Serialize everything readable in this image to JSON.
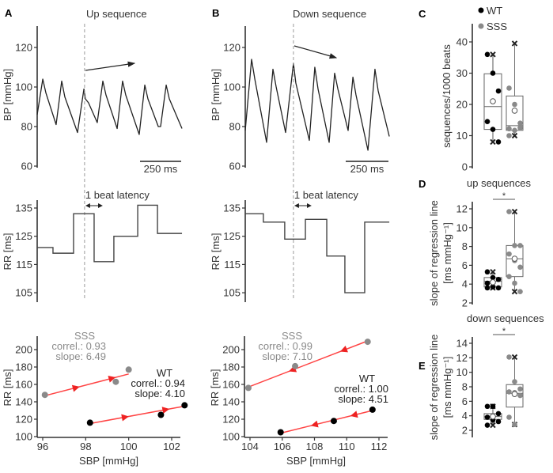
{
  "chart_data": [
    {
      "id": "A_bp",
      "panel": "A",
      "type": "line",
      "title": "Up sequence",
      "ylabel": "BP [mmHg]",
      "ylim": [
        60,
        130
      ],
      "yticks": [
        60,
        80,
        100,
        120
      ],
      "scalebar": "250 ms",
      "x_unit": "ms",
      "marker_time": 288,
      "trace": [
        [
          0,
          86
        ],
        [
          34,
          104
        ],
        [
          53,
          97
        ],
        [
          115,
          81
        ],
        [
          149,
          103
        ],
        [
          168,
          95
        ],
        [
          245,
          77
        ],
        [
          284,
          99
        ],
        [
          293,
          94
        ],
        [
          312,
          92
        ],
        [
          365,
          82
        ],
        [
          399,
          103
        ],
        [
          418,
          96
        ],
        [
          486,
          79
        ],
        [
          519,
          103
        ],
        [
          538,
          96
        ],
        [
          620,
          76
        ],
        [
          654,
          101
        ],
        [
          673,
          94
        ],
        [
          736,
          80
        ],
        [
          750,
          80
        ],
        [
          784,
          101
        ],
        [
          803,
          94
        ],
        [
          880,
          79
        ]
      ]
    },
    {
      "id": "B_bp",
      "panel": "B",
      "type": "line",
      "title": "Down sequence",
      "ylabel": "BP [mmHg]",
      "ylim": [
        60,
        130
      ],
      "yticks": [
        60,
        80,
        100,
        120
      ],
      "scalebar": "250 ms",
      "x_unit": "ms",
      "marker_time": 282,
      "trace": [
        [
          0,
          78
        ],
        [
          37,
          114
        ],
        [
          56,
          104
        ],
        [
          125,
          72
        ],
        [
          162,
          109
        ],
        [
          181,
          100
        ],
        [
          236,
          77
        ],
        [
          282,
          112
        ],
        [
          296,
          102
        ],
        [
          375,
          73
        ],
        [
          407,
          110
        ],
        [
          426,
          99
        ],
        [
          491,
          72
        ],
        [
          523,
          107
        ],
        [
          542,
          99
        ],
        [
          602,
          78
        ],
        [
          630,
          105
        ],
        [
          648,
          96
        ],
        [
          718,
          68
        ],
        [
          759,
          109
        ],
        [
          778,
          98
        ],
        [
          843,
          75
        ]
      ]
    },
    {
      "id": "A_rr",
      "panel": "A",
      "type": "line",
      "ylabel": "RR [ms]",
      "ylim": [
        102,
        138
      ],
      "yticks": [
        105,
        115,
        125,
        135
      ],
      "annotation": "1 beat latency",
      "marker_time": 288,
      "steps": {
        "bounds": [
          0,
          96,
          221,
          346,
          466,
          611,
          731,
          880
        ],
        "values": [
          121,
          119,
          133,
          116,
          125,
          136,
          126
        ]
      }
    },
    {
      "id": "B_rr",
      "panel": "B",
      "type": "line",
      "ylabel": "RR [ms]",
      "ylim": [
        102,
        138
      ],
      "yticks": [
        105,
        115,
        125,
        135
      ],
      "annotation": "1 beat latency",
      "marker_time": 282,
      "steps": {
        "bounds": [
          0,
          106,
          231,
          352,
          477,
          583,
          699,
          843
        ],
        "values": [
          133,
          130,
          124,
          131,
          118,
          105,
          130
        ]
      }
    },
    {
      "id": "A_scatter",
      "panel": "A",
      "type": "scatter",
      "xlabel": "SBP [mmHg]",
      "ylabel": "RR [ms]",
      "xlim": [
        95.8,
        103.1
      ],
      "ylim": [
        100,
        215
      ],
      "xticks": [
        96,
        98,
        100,
        102
      ],
      "yticks": [
        100,
        120,
        140,
        160,
        180,
        200
      ],
      "direction": "up",
      "series": [
        {
          "name": "SSS",
          "color": "#8a8a8a",
          "correl_label": "correl.: 0.93",
          "slope_label": "slope: 6.49",
          "points": [
            [
              96.1,
              148
            ],
            [
              99.4,
              163
            ],
            [
              100,
              177
            ]
          ],
          "fit": [
            [
              96.1,
              147
            ],
            [
              100,
              172
            ]
          ]
        },
        {
          "name": "WT",
          "color": "#000000",
          "correl_label": "correl.: 0.94",
          "slope_label": "slope: 4.10",
          "points": [
            [
              98.2,
              116
            ],
            [
              101.5,
              125
            ],
            [
              102.6,
              136
            ]
          ],
          "fit": [
            [
              98.2,
              115
            ],
            [
              102.6,
              135
            ]
          ]
        }
      ]
    },
    {
      "id": "B_scatter",
      "panel": "B",
      "type": "scatter",
      "xlabel": "SBP [mmHg]",
      "ylabel": "RR [ms]",
      "xlim": [
        103.2,
        112.4
      ],
      "ylim": [
        100,
        215
      ],
      "xticks": [
        104,
        106,
        108,
        110,
        112
      ],
      "yticks": [
        100,
        120,
        140,
        160,
        180,
        200
      ],
      "direction": "down",
      "series": [
        {
          "name": "SSS",
          "color": "#8a8a8a",
          "correl_label": "correl.: 0.99",
          "slope_label": "slope: 7.10",
          "points": [
            [
              103.9,
              156
            ],
            [
              106.8,
              181
            ],
            [
              111.3,
              209
            ]
          ],
          "fit": [
            [
              103.9,
              157
            ],
            [
              111.3,
              210
            ]
          ]
        },
        {
          "name": "WT",
          "color": "#000000",
          "correl_label": "correl.: 1.00",
          "slope_label": "slope: 4.51",
          "points": [
            [
              105.9,
              105
            ],
            [
              109.2,
              118
            ],
            [
              111.6,
              131
            ]
          ],
          "fit": [
            [
              105.9,
              104
            ],
            [
              111.6,
              130
            ]
          ]
        }
      ]
    },
    {
      "id": "C_box",
      "panel": "C",
      "type": "box",
      "ylabel": "sequences/1000 beats",
      "ylim": [
        0,
        45
      ],
      "yticks": [
        0,
        10,
        20,
        30,
        40
      ],
      "legend": [
        "WT",
        "SSS"
      ],
      "groups": [
        {
          "name": "WT",
          "color": "#000000",
          "q1": 12,
          "median": 19.3,
          "q3": 29.8,
          "min": 8,
          "max": 36,
          "mean": 21,
          "points": [
            36,
            30,
            24.3,
            14.5,
            12,
            8
          ]
        },
        {
          "name": "SSS",
          "color": "#8a8a8a",
          "q1": 11.7,
          "median": 13.2,
          "q3": 22.7,
          "min": 10,
          "max": 39.5,
          "mean": 18,
          "points": [
            25.2,
            20,
            14,
            12.2,
            11.7,
            12.5,
            10
          ]
        }
      ]
    },
    {
      "id": "D_box",
      "panel": "D",
      "type": "box",
      "title": "up sequences",
      "ylabel": "slope of regression line",
      "ylabel2": "[ms mmHg⁻¹]",
      "ylim": [
        2,
        13
      ],
      "yticks": [
        2,
        4,
        6,
        8,
        10,
        12
      ],
      "significance": "*",
      "groups": [
        {
          "name": "WT",
          "color": "#000000",
          "q1": 3.7,
          "median": 4.3,
          "q3": 4.7,
          "min": 3.6,
          "max": 5.3,
          "mean": 4.2,
          "points": [
            5.3,
            4.7,
            4.5,
            4.1,
            3.7,
            3.6,
            3.6
          ]
        },
        {
          "name": "SSS",
          "color": "#8a8a8a",
          "q1": 4.8,
          "median": 6.7,
          "q3": 8.1,
          "min": 3.2,
          "max": 11.7,
          "mean": 6.7,
          "points": [
            11.7,
            8.1,
            8.1,
            7.2,
            6.5,
            5.8,
            4.8,
            4.1,
            3.2
          ]
        }
      ]
    },
    {
      "id": "E_box",
      "panel": "E",
      "type": "box",
      "title": "down sequences",
      "ylabel": "slope of regression line",
      "ylabel2": "[ms mmHg⁻¹]",
      "ylim": [
        1,
        15
      ],
      "yticks": [
        2,
        4,
        6,
        8,
        10,
        12,
        14
      ],
      "significance": "*",
      "groups": [
        {
          "name": "WT",
          "color": "#000000",
          "q1": 3.5,
          "median": 3.9,
          "q3": 4.3,
          "min": 2.7,
          "max": 5.3,
          "mean": 3.9,
          "points": [
            5.3,
            5.3,
            4.3,
            3.8,
            3.4,
            3.2,
            2.7
          ]
        },
        {
          "name": "SSS",
          "color": "#8a8a8a",
          "q1": 5.2,
          "median": 7.1,
          "q3": 8.3,
          "min": 2.8,
          "max": 12.1,
          "mean": 7.0,
          "points": [
            12.1,
            8.7,
            7.7,
            7.3,
            7.2,
            6.8,
            3.8,
            2.8
          ]
        }
      ]
    }
  ]
}
